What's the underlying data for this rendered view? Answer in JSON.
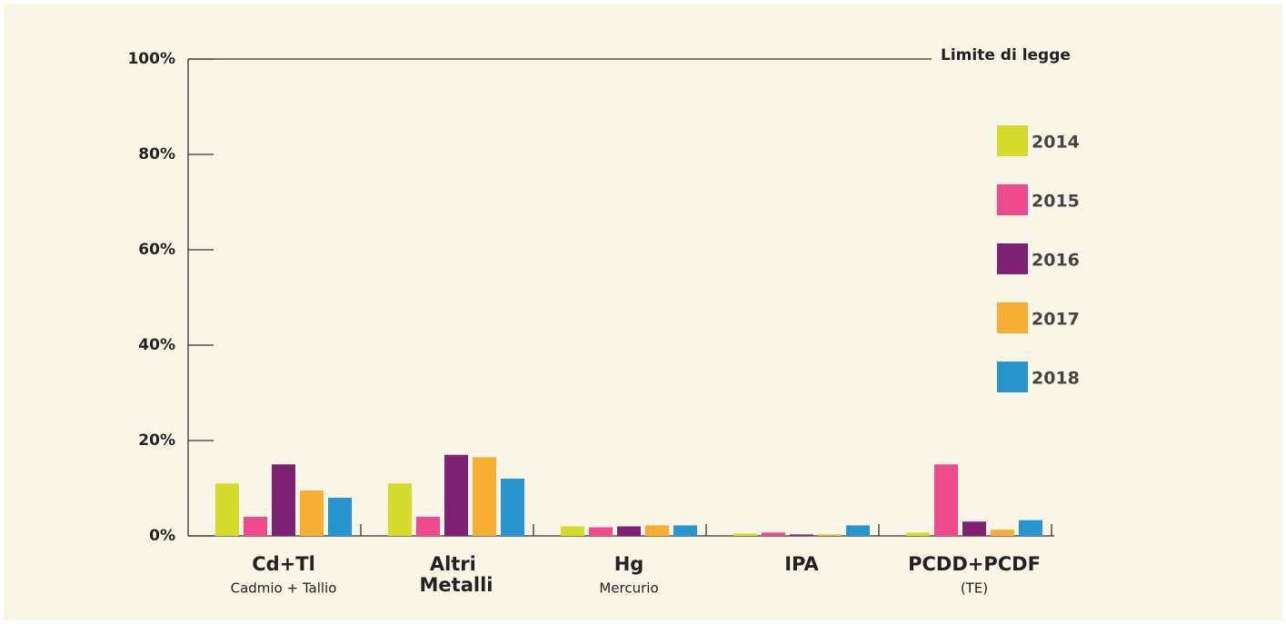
{
  "chart_data": {
    "type": "bar",
    "categories": [
      "Cd+Tl",
      "Altri Metalli",
      "Hg",
      "IPA",
      "PCDD+PCDF"
    ],
    "category_subtitles": [
      "Cadmio + Tallio",
      null,
      "Mercurio",
      null,
      "(TE)"
    ],
    "series": [
      {
        "name": "2014",
        "color": "#d4dc2a",
        "values": [
          11,
          11,
          2,
          0.5,
          0.7
        ]
      },
      {
        "name": "2015",
        "color": "#ef4b8c",
        "values": [
          4,
          4,
          1.8,
          0.7,
          15
        ]
      },
      {
        "name": "2016",
        "color": "#7f2275",
        "values": [
          15,
          17,
          2,
          0.3,
          3
        ]
      },
      {
        "name": "2017",
        "color": "#f9ae33",
        "values": [
          9.5,
          16.5,
          2.2,
          0.3,
          1.3
        ]
      },
      {
        "name": "2018",
        "color": "#2795cf",
        "values": [
          8,
          12,
          2.2,
          2.2,
          3.3
        ]
      }
    ],
    "ylim": [
      0,
      100
    ],
    "yticks": [
      {
        "value": 0,
        "label": "0%"
      },
      {
        "value": 20,
        "label": "20%"
      },
      {
        "value": 40,
        "label": "40%"
      },
      {
        "value": 60,
        "label": "60%"
      },
      {
        "value": 80,
        "label": "80%"
      },
      {
        "value": 100,
        "label": "100%"
      }
    ],
    "limit_line": {
      "value": 100,
      "label": "Limite di legge"
    },
    "legend": "right"
  }
}
